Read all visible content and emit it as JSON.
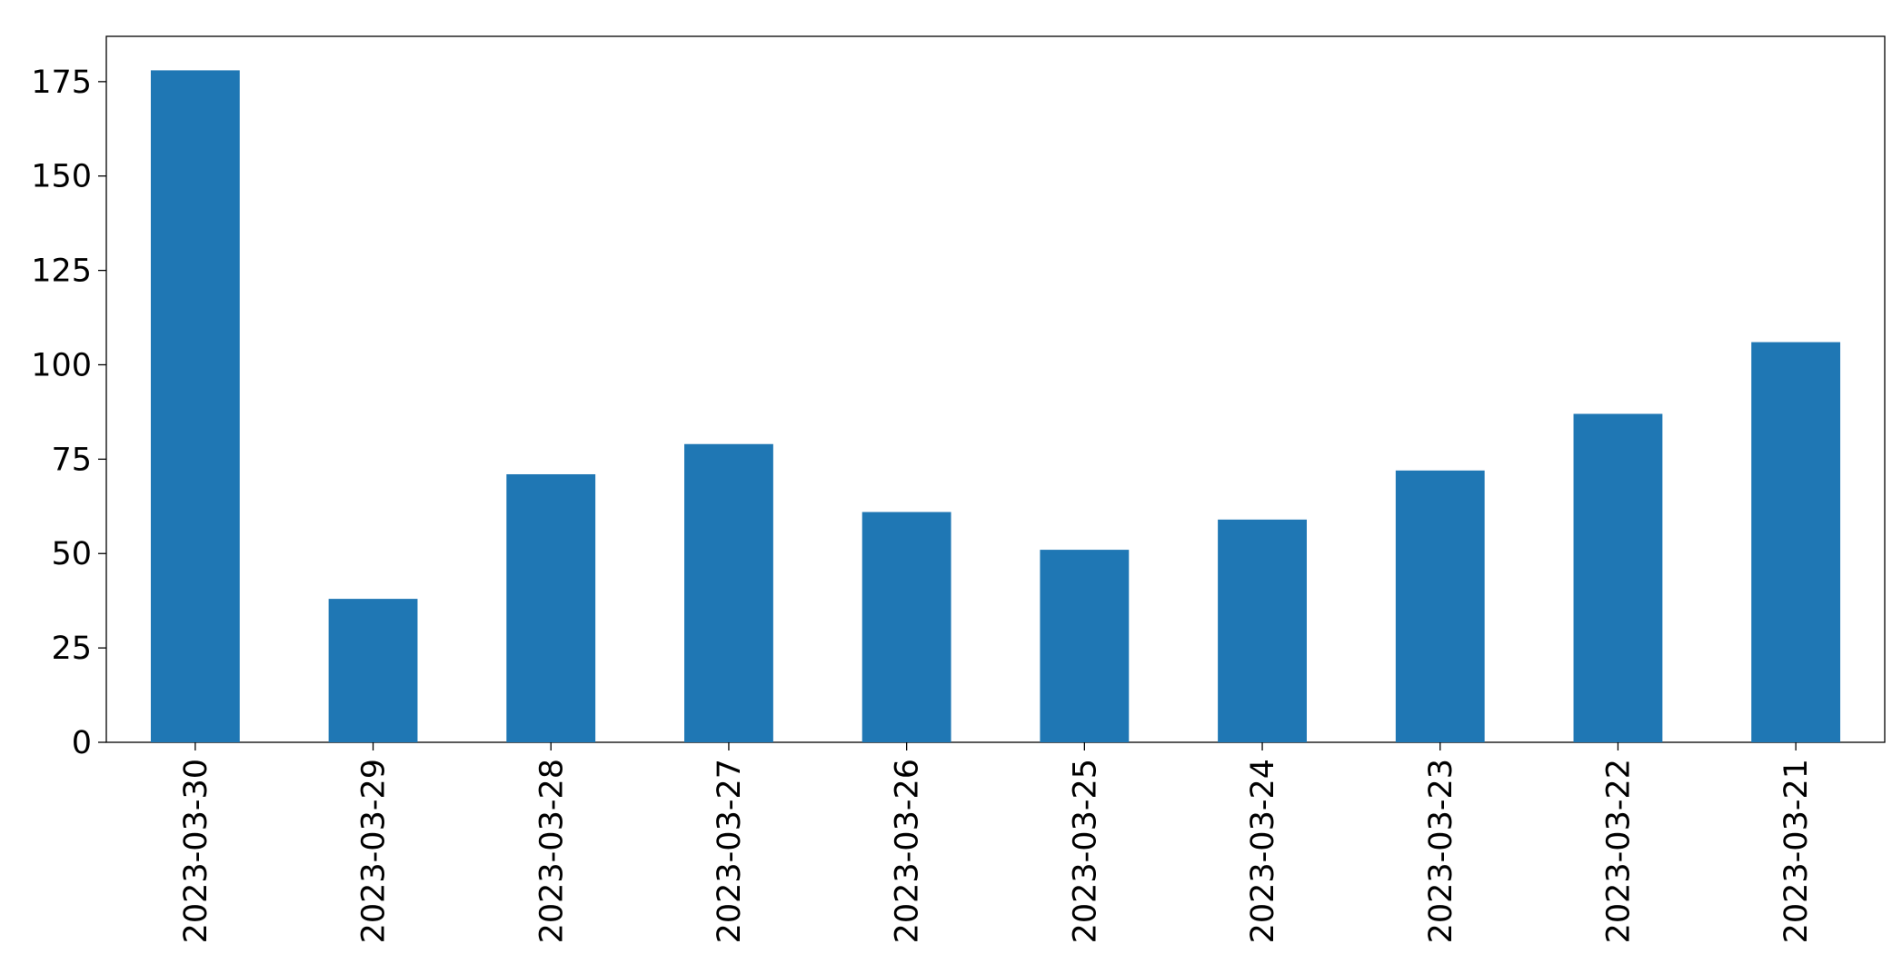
{
  "chart_data": {
    "type": "bar",
    "categories": [
      "2023-03-30",
      "2023-03-29",
      "2023-03-28",
      "2023-03-27",
      "2023-03-26",
      "2023-03-25",
      "2023-03-24",
      "2023-03-23",
      "2023-03-22",
      "2023-03-21"
    ],
    "values": [
      178,
      38,
      71,
      79,
      61,
      51,
      59,
      72,
      87,
      106
    ],
    "color": "#1f77b4",
    "ylim": [
      0,
      187
    ],
    "yticks": [
      0,
      25,
      50,
      75,
      100,
      125,
      150,
      175
    ],
    "grid": false
  }
}
